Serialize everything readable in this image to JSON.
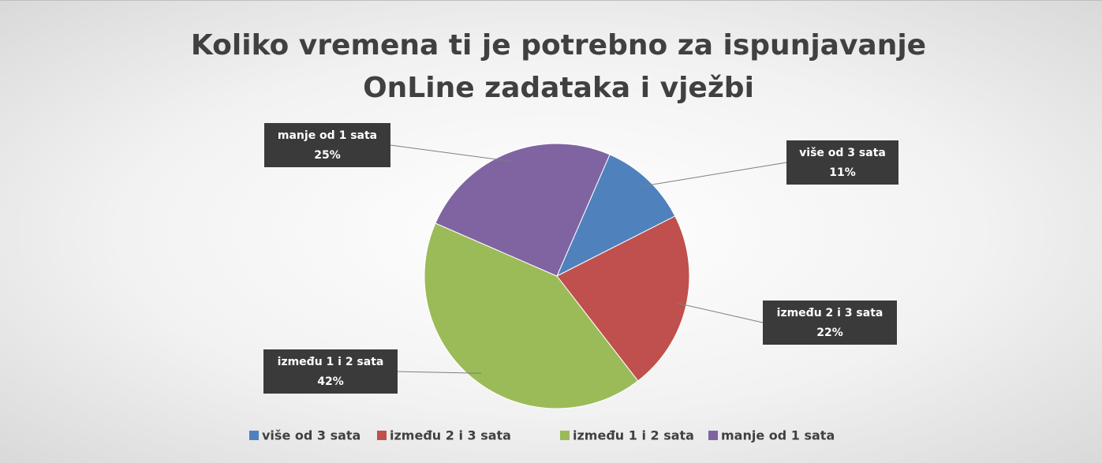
{
  "chart_data": {
    "type": "pie",
    "title": "Koliko vremena ti je potrebno za ispunjavanje OnLine zadataka i vježbi",
    "categories": [
      "više od 3 sata",
      "između 2 i 3 sata",
      "između 1 i 2 sata",
      "manje od 1 sata"
    ],
    "values": [
      11,
      22,
      42,
      25
    ],
    "value_labels": [
      "11%",
      "22%",
      "42%",
      "25%"
    ],
    "colors": [
      "#4f81bd",
      "#c0504d",
      "#9bbb59",
      "#8064a2"
    ],
    "legend": "bottom"
  }
}
